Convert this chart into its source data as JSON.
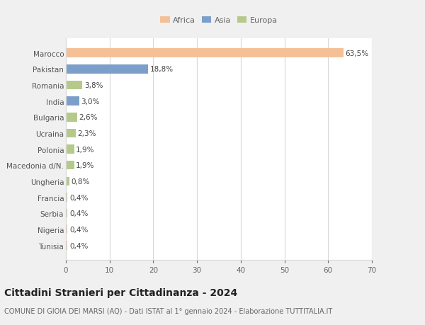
{
  "categories": [
    "Tunisia",
    "Nigeria",
    "Serbia",
    "Francia",
    "Ungheria",
    "Macedonia d/N.",
    "Polonia",
    "Ucraina",
    "Bulgaria",
    "India",
    "Romania",
    "Pakistan",
    "Marocco"
  ],
  "values": [
    0.4,
    0.4,
    0.4,
    0.4,
    0.8,
    1.9,
    1.9,
    2.3,
    2.6,
    3.0,
    3.8,
    18.8,
    63.5
  ],
  "labels": [
    "0,4%",
    "0,4%",
    "0,4%",
    "0,4%",
    "0,8%",
    "1,9%",
    "1,9%",
    "2,3%",
    "2,6%",
    "3,0%",
    "3,8%",
    "18,8%",
    "63,5%"
  ],
  "continents": [
    "Africa",
    "Africa",
    "Europa",
    "Europa",
    "Europa",
    "Europa",
    "Europa",
    "Europa",
    "Europa",
    "Asia",
    "Europa",
    "Asia",
    "Africa"
  ],
  "colors": {
    "Africa": "#F5C096",
    "Asia": "#7B9FCA",
    "Europa": "#B5C98A"
  },
  "title": "Cittadini Stranieri per Cittadinanza - 2024",
  "subtitle": "COMUNE DI GIOIA DEI MARSI (AQ) - Dati ISTAT al 1° gennaio 2024 - Elaborazione TUTTITALIA.IT",
  "xlim": [
    0,
    70
  ],
  "xticks": [
    0,
    10,
    20,
    30,
    40,
    50,
    60,
    70
  ],
  "background_color": "#f0f0f0",
  "plot_background": "#ffffff",
  "grid_color": "#d8d8d8",
  "bar_height": 0.55,
  "label_fontsize": 7.5,
  "tick_fontsize": 7.5,
  "ytick_fontsize": 7.5,
  "title_fontsize": 10,
  "subtitle_fontsize": 7,
  "legend_fontsize": 8
}
